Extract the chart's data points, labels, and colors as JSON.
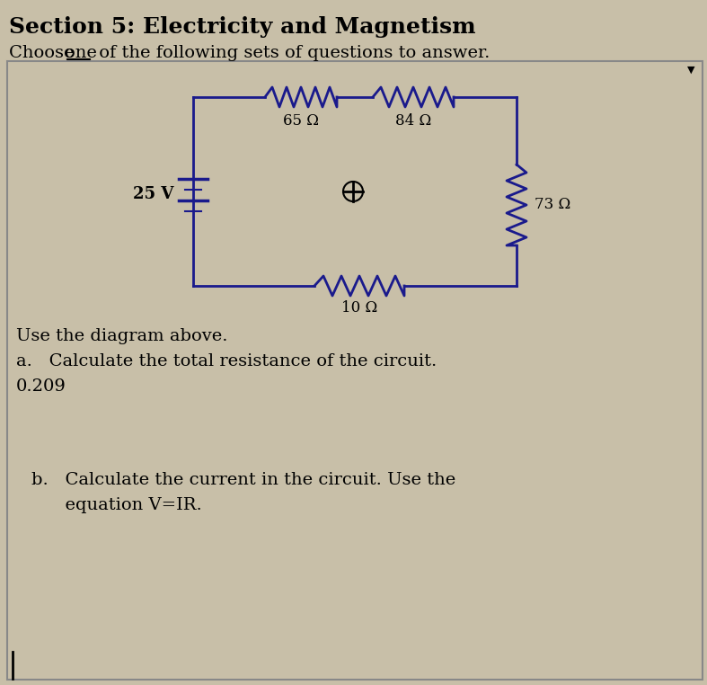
{
  "title": "Section 5: Electricity and Magnetism",
  "bg_color": "#c8bfa8",
  "box_bg": "#c8bfa8",
  "circuit_color": "#1a1a8c",
  "resistors": [
    "65 Ω",
    "84 Ω",
    "73 Ω",
    "10 Ω"
  ],
  "voltage": "25 V",
  "use_diagram_text": "Use the diagram above.",
  "question_a": "a.   Calculate the total resistance of the circuit.",
  "answer_a": "0.209",
  "question_b1": "b.   Calculate the current in the circuit. Use the",
  "question_b2": "      equation V=IR.",
  "title_fontsize": 18,
  "body_fontsize": 14,
  "figsize": [
    7.87,
    7.62
  ],
  "dpi": 100
}
